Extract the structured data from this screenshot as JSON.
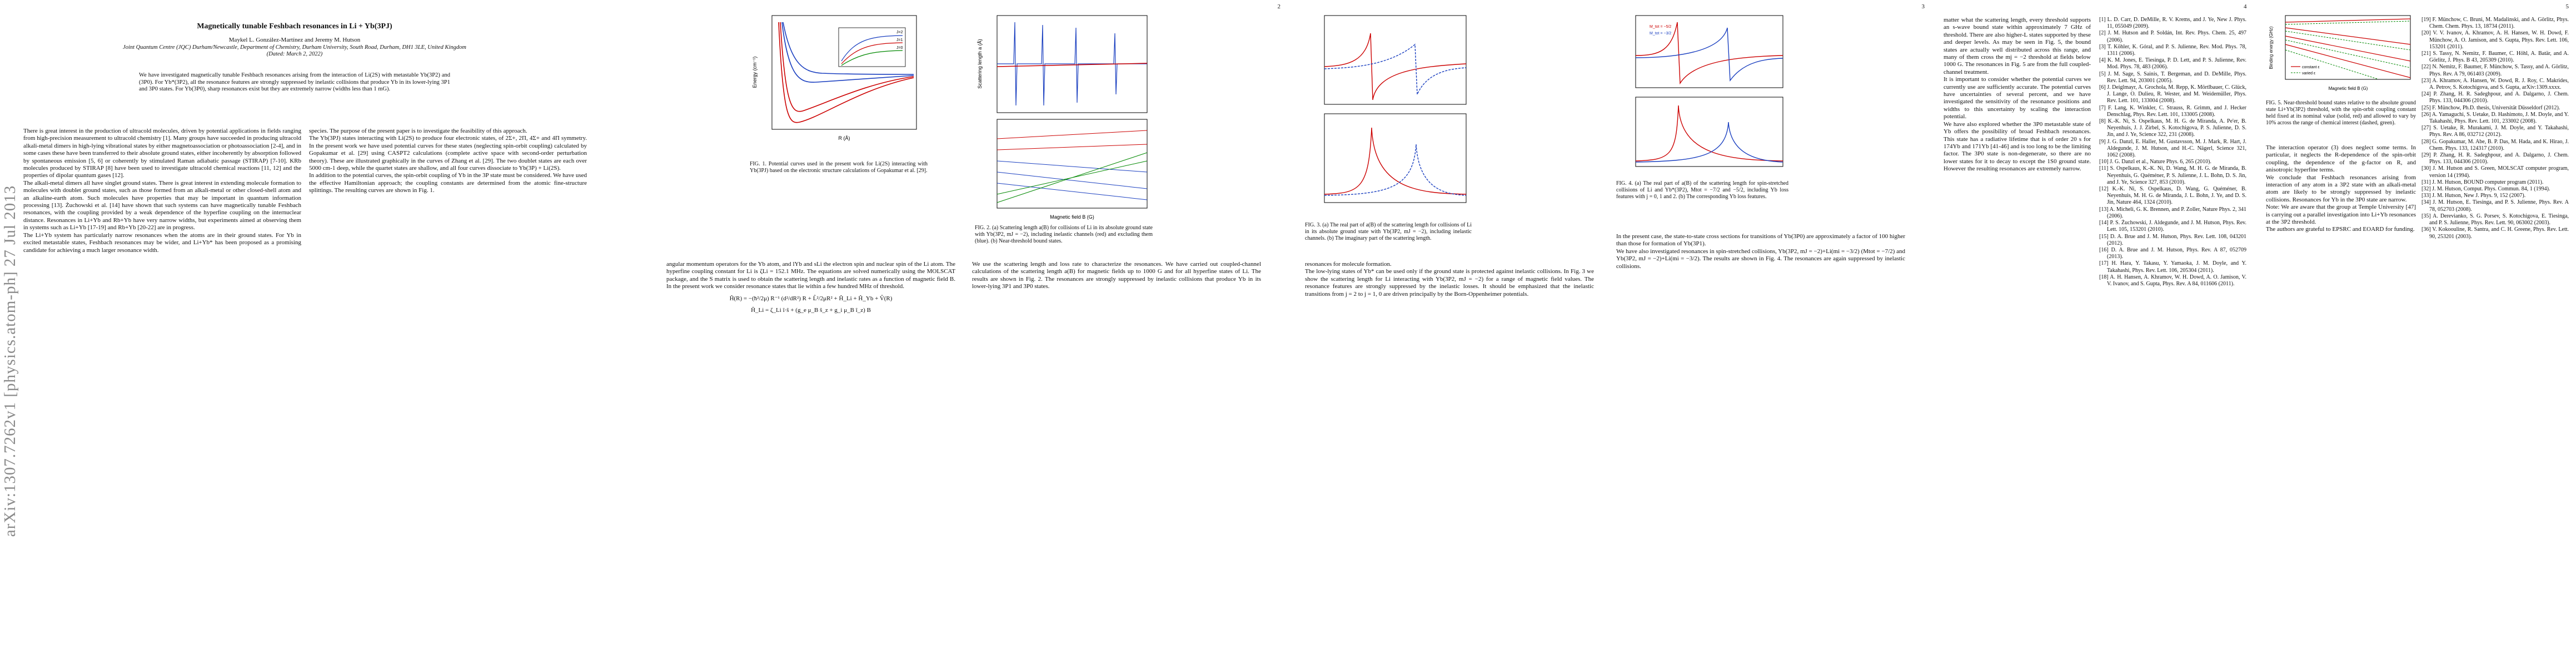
{
  "arxiv_stamp": "arXiv:1307.7262v1 [physics.atom-ph] 27 Jul 2013",
  "page_numbers": [
    "2",
    "3",
    "4",
    "5"
  ],
  "title": "Magnetically tunable Feshbach resonances in Li + Yb(3PJ)",
  "authors": "Maykel L. González-Martínez and Jeremy M. Hutson",
  "affiliation": "Joint Quantum Centre (JQC) Durham/Newcastle, Department of Chemistry, Durham University, South Road, Durham, DH1 3LE, United Kingdom",
  "date": "(Dated: March 2, 2022)",
  "abstract": "We have investigated magnetically tunable Feshbach resonances arising from the interaction of Li(2S) with metastable Yb(3P2) and (3P0). For Yb*(3P2), all the resonance features are strongly suppressed by inelastic collisions that produce Yb in its lower-lying 3P1 and 3P0 states. For Yb(3P0), sharp resonances exist but they are extremely narrow (widths less than 1 mG).",
  "body": {
    "p1_col1": "There is great interest in the production of ultracold molecules, driven by potential applications in fields ranging from high-precision measurement to ultracold chemistry [1]. Many groups have succeeded in producing ultracold alkali-metal dimers in high-lying vibrational states by either magnetoassociation or photoassociation [2-4], and in some cases these have been transferred to their absolute ground states, either incoherently by absorption followed by spontaneous emission [5, 6] or coherently by stimulated Raman adiabatic passage (STIRAP) [7-10]. KRb molecules produced by STIRAP [8] have been used to investigate ultracold chemical reactions [11, 12] and the properties of dipolar quantum gases [12].\nThe alkali-metal dimers all have singlet ground states. There is great interest in extending molecule formation to molecules with doublet ground states, such as those formed from an alkali-metal or other closed-shell atom and an alkaline-earth atom. Such molecules have properties that may be important in quantum information processing [13]. Żuchowski et al. [14] have shown that such systems can have magnetically tunable Feshbach resonances, with the coupling provided by a weak dependence of the hyperfine coupling on the internuclear distance. Resonances in Li+Yb and Rb+Yb have very narrow widths, but experiments aimed at observing them in systems such as Li+Yb [17-19] and Rb+Yb [20-22] are in progress.\nThe Li+Yb system has particularly narrow resonances when the atoms are in their ground states. For Yb in excited metastable states, Feshbach resonances may be wider, and Li+Yb* has been proposed as a promising candidate for achieving a much larger resonance width.",
    "p1_col2": "species. The purpose of the present paper is to investigate the feasibility of this approach.\nThe Yb(3PJ) states interacting with Li(2S) to produce four electronic states, of 2Σ+, 2Π, 4Σ+ and 4Π symmetry. In the present work we have used potential curves for these states (neglecting spin-orbit coupling) calculated by Gopakumar et al. [29] using CASPT2 calculations (complete active space with second-order perturbation theory). These are illustrated graphically in the curves of Zhang et al. [29]. The two doublet states are each over 5000 cm-1 deep, while the quartet states are shallow, and all four curves dissociate to Yb(3P) + Li(2S).\nIn addition to the potential curves, the spin-orbit coupling of Yb in the 3P state must be considered. We have used the effective Hamiltonian approach; the coupling constants are determined from the atomic fine-structure splittings. The resulting curves are shown in Fig. 1."
  },
  "fig1": {
    "caption": "FIG. 1. Potential curves used in the present work for Li(2S) interacting with Yb(3PJ) based on the electronic structure calculations of Gopakumar et al. [29].",
    "ylabel": "Energy (cm⁻¹)",
    "xlabel": "R (Å)",
    "inset_labels": [
      "J=2",
      "J=1",
      "J=0"
    ]
  },
  "p2": {
    "col1": "angular momentum operators for the Yb atom, and lYb and sLi the electron spin and nuclear spin of the Li atom. The hyperfine coupling constant for Li is ζLi = 152.1 MHz. The equations are solved numerically using the MOLSCAT package, and the S matrix is used to obtain the scattering length and inelastic rates as a function of magnetic field B. In the present work we consider resonance states that lie within a few hundred MHz of threshold.",
    "eq1": "Ĥ(R) = −(ħ²/2μ) R⁻¹ (d²/dR²) R + L̂²/2μR² + Ĥ_Li + Ĥ_Yb + V̂(R)",
    "eq2": "Ĥ_Li = ζ_Li î·ŝ + (g_e μ_B ŝ_z + g_i μ_B î_z) B",
    "col2": "We use the scattering length and loss rate to characterize the resonances. We have carried out coupled-channel calculations of the scattering length a(B) for magnetic fields up to 1000 G and for all hyperfine states of Li. The results are shown in Fig. 2. The resonances are strongly suppressed by inelastic collisions that produce Yb in its lower-lying 3P1 and 3P0 states.",
    "fig2_caption": "FIG. 2. (a) Scattering length a(B) for collisions of Li in its absolute ground state with Yb(3P2, mJ = −2), including inelastic channels (red) and excluding them (blue). (b) Near-threshold bound states.",
    "fig2_legend": [
      "full calculation",
      "excluding 3P1/3P0",
      "signal scattering length"
    ],
    "fig2_xlabel": "Magnetic field B (G)",
    "fig2_ylabel": "Scattering length a (Å)"
  },
  "p3": {
    "col1": "resonances for molecule formation.\nThe low-lying states of Yb* can be used only if the ground state is protected against inelastic collisions. In Fig. 3 we show the scattering length for Li interacting with Yb(3P2, mJ = −2) for a range of magnetic field values. The resonance features are strongly suppressed by the inelastic losses. It should be emphasized that the inelastic transitions from j = 2 to j = 1, 0 are driven principally by the Born-Oppenheimer potentials.",
    "col2": "In the present case, the state-to-state cross sections for transitions of Yb(3P0) are approximately a factor of 100 higher than those for formation of Yb(3P1).\nWe have also investigated resonances in spin-stretched collisions, Yb(3P2, mJ = −2)+Li(mi = −3/2) (Mtot = −7/2) and Yb(3P2, mJ = −2)+Li(mi = −3/2). The results are shown in Fig. 4. The resonances are again suppressed by inelastic collisions.",
    "fig3_caption": "FIG. 3. (a) The real part of a(B) of the scattering length for collisions of Li in its absolute ground state with Yb(3P2, mJ = −2), including inelastic channels. (b) The imaginary part of the scattering length.",
    "fig3_legend": [
      "M_tot = −5/2",
      "M_tot = −3/2"
    ],
    "fig4_caption": "FIG. 4. (a) The real part of a(B) of the scattering length for spin-stretched collisions of Li and Yb*(3P2), Mtot = −7/2 and −5/2, including Yb loss features with j = 0, 1 and 2. (b) The corresponding Yb loss features."
  },
  "p4": {
    "col1": "matter what the scattering length, every threshold supports an s-wave bound state within approximately 7 GHz of threshold. There are also higher-L states supported by these and deeper levels. As may be seen in Fig. 5, the bound states are actually well distributed across this range, and many of them cross the mj = −2 threshold at fields below 1000 G. The resonances in Fig. 5 are from the full coupled-channel treatment.\nIt is important to consider whether the potential curves we currently use are sufficiently accurate. The potential curves have uncertainties of several percent, and we have investigated the sensitivity of the resonance positions and widths to this uncertainty by scaling the interaction potential.\nWe have also explored whether the 3P0 metastable state of Yb offers the possibility of broad Feshbach resonances. This state has a radiative lifetime that is of order 20 s for 174Yb and 171Yb [41-46] and is too long to be the limiting factor. The 3P0 state is non-degenerate, so there are no lower states for it to decay to except the 1S0 ground state. However the resulting resonances are extremely narrow.",
    "col2": "The interaction operator (3) does neglect some terms. In particular, it neglects the R-dependence of the spin-orbit coupling, the dependence of the g-factor on R, and anisotropic hyperfine terms.\nWe conclude that Feshbach resonances arising from interaction of any atom in a 3P2 state with an alkali-metal atom are likely to be strongly suppressed by inelastic collisions. Resonances for Yb in the 3P0 state are narrow.\nNote: We are aware that the group at Temple University [47] is carrying out a parallel investigation into Li+Yb resonances at the 3P2 threshold.\nThe authors are grateful to EPSRC and EOARD for funding.",
    "fig5_caption": "FIG. 5. Near-threshold bound states relative to the absolute ground state Li+Yb(3P2) threshold, with the spin-orbit coupling constant held fixed at its nominal value (solid, red) and allowed to vary by 10% across the range of chemical interest (dashed, green).",
    "fig5_ylabel": "Binding energy (GHz)",
    "fig5_xlabel": "Magnetic field B (G)",
    "fig5_legend": [
      "constant ε",
      "varied ε"
    ]
  },
  "references_p4a": [
    "[1] L. D. Carr, D. DeMille, R. V. Krems, and J. Ye, New J. Phys. 11, 055049 (2009).",
    "[2] J. M. Hutson and P. Soldán, Int. Rev. Phys. Chem. 25, 497 (2006).",
    "[3] T. Köhler, K. Góral, and P. S. Julienne, Rev. Mod. Phys. 78, 1311 (2006).",
    "[4] K. M. Jones, E. Tiesinga, P. D. Lett, and P. S. Julienne, Rev. Mod. Phys. 78, 483 (2006).",
    "[5] J. M. Sage, S. Sainis, T. Bergeman, and D. DeMille, Phys. Rev. Lett. 94, 203001 (2005).",
    "[6] J. Deiglmayr, A. Grochola, M. Repp, K. Mörtlbauer, C. Glück, J. Lange, O. Dulieu, R. Wester, and M. Weidemüller, Phys. Rev. Lett. 101, 133004 (2008).",
    "[7] F. Lang, K. Winkler, C. Strauss, R. Grimm, and J. Hecker Denschlag, Phys. Rev. Lett. 101, 133005 (2008).",
    "[8] K.-K. Ni, S. Ospelkaus, M. H. G. de Miranda, A. Pe'er, B. Neyenhuis, J. J. Zirbel, S. Kotochigova, P. S. Julienne, D. S. Jin, and J. Ye, Science 322, 231 (2008).",
    "[9] J. G. Danzl, E. Haller, M. Gustavsson, M. J. Mark, R. Hart, J. Aldegunde, J. M. Hutson, and H.-C. Nägerl, Science 321, 1062 (2008).",
    "[10] J. G. Danzl et al., Nature Phys. 6, 265 (2010).",
    "[11] S. Ospelkaus, K.-K. Ni, D. Wang, M. H. G. de Miranda, B. Neyenhuis, G. Quéméner, P. S. Julienne, J. L. Bohn, D. S. Jin, and J. Ye, Science 327, 853 (2010).",
    "[12] K.-K. Ni, S. Ospelkaus, D. Wang, G. Quéméner, B. Neyenhuis, M. H. G. de Miranda, J. L. Bohn, J. Ye, and D. S. Jin, Nature 464, 1324 (2010).",
    "[13] A. Micheli, G. K. Brennen, and P. Zoller, Nature Phys. 2, 341 (2006).",
    "[14] P. S. Żuchowski, J. Aldegunde, and J. M. Hutson, Phys. Rev. Lett. 105, 153201 (2010).",
    "[15] D. A. Brue and J. M. Hutson, Phys. Rev. Lett. 108, 043201 (2012).",
    "[16] D. A. Brue and J. M. Hutson, Phys. Rev. A 87, 052709 (2013).",
    "[17] H. Hara, Y. Takasu, Y. Yamaoka, J. M. Doyle, and Y. Takahashi, Phys. Rev. Lett. 106, 205304 (2011).",
    "[18] A. H. Hansen, A. Khramov, W. H. Dowd, A. O. Jamison, V. V. Ivanov, and S. Gupta, Phys. Rev. A 84, 011606 (2011)."
  ],
  "references_p4b": [
    "[19] F. Münchow, C. Bruni, M. Madalinski, and A. Görlitz, Phys. Chem. Chem. Phys. 13, 18734 (2011).",
    "[20] V. V. Ivanov, A. Khramov, A. H. Hansen, W. H. Dowd, F. Münchow, A. O. Jamison, and S. Gupta, Phys. Rev. Lett. 106, 153201 (2011).",
    "[21] S. Tassy, N. Nemitz, F. Baumer, C. Höhl, A. Batär, and A. Görlitz, J. Phys. B 43, 205309 (2010).",
    "[22] N. Nemitz, F. Baumer, F. Münchow, S. Tassy, and A. Görlitz, Phys. Rev. A 79, 061403 (2009).",
    "[23] A. Khramov, A. Hansen, W. Dowd, R. J. Roy, C. Makrides, A. Petrov, S. Kotochigova, and S. Gupta, arXiv:1309.xxxx.",
    "[24] P. Zhang, H. R. Sadeghpour, and A. Dalgarno, J. Chem. Phys. 133, 044306 (2010).",
    "[25] F. Münchow, Ph.D. thesis, Universität Düsseldorf (2012).",
    "[26] A. Yamaguchi, S. Uetake, D. Hashimoto, J. M. Doyle, and Y. Takahashi, Phys. Rev. Lett. 101, 233002 (2008).",
    "[27] S. Uetake, R. Murakami, J. M. Doyle, and Y. Takahashi, Phys. Rev. A 86, 032712 (2012).",
    "[28] G. Gopakumar, M. Abe, B. P. Das, M. Hada, and K. Hirao, J. Chem. Phys. 133, 124317 (2010).",
    "[29] P. Zhang, H. R. Sadeghpour, and A. Dalgarno, J. Chem. Phys. 133, 044306 (2010).",
    "[30] J. M. Hutson and S. Green, MOLSCAT computer program, version 14 (1994).",
    "[31] J. M. Hutson, BOUND computer program (2011).",
    "[32] J. M. Hutson, Comput. Phys. Commun. 84, 1 (1994).",
    "[33] J. M. Hutson, New J. Phys. 9, 152 (2007).",
    "[34] J. M. Hutson, E. Tiesinga, and P. S. Julienne, Phys. Rev. A 78, 052703 (2008).",
    "[35] A. Derevianko, S. G. Porsev, S. Kotochigova, E. Tiesinga, and P. S. Julienne, Phys. Rev. Lett. 90, 063002 (2003).",
    "[36] V. Kokoouline, R. Santra, and C. H. Greene, Phys. Rev. Lett. 90, 253201 (2003).",
    "[47] S. Kotochigova, private communication."
  ]
}
